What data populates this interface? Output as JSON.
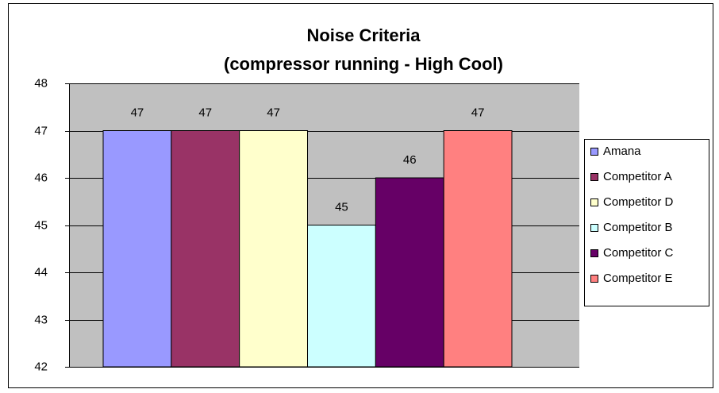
{
  "chart_data": {
    "type": "bar",
    "title": "Noise Criteria",
    "subtitle": "(compressor running - High Cool)",
    "series": [
      {
        "name": "Amana",
        "color": "#9999ff",
        "values": [
          47
        ]
      },
      {
        "name": "Competitor A",
        "color": "#993366",
        "values": [
          47
        ]
      },
      {
        "name": "Competitor D",
        "color": "#ffffcc",
        "values": [
          47
        ]
      },
      {
        "name": "Competitor B",
        "color": "#ccffff",
        "values": [
          45
        ]
      },
      {
        "name": "Competitor C",
        "color": "#660066",
        "values": [
          46
        ]
      },
      {
        "name": "Competitor E",
        "color": "#ff8080",
        "values": [
          47
        ]
      }
    ],
    "ylim": [
      42,
      48
    ],
    "yticks": [
      42,
      43,
      44,
      45,
      46,
      47,
      48
    ],
    "grid": true,
    "legend": "right"
  }
}
